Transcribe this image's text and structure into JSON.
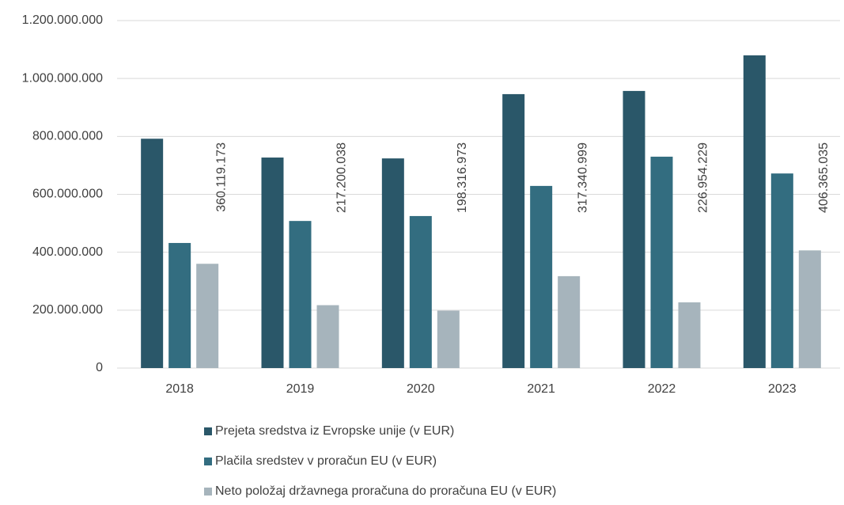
{
  "chart_data": {
    "type": "bar",
    "categories": [
      "2018",
      "2019",
      "2020",
      "2021",
      "2022",
      "2023"
    ],
    "series": [
      {
        "name": "Prejeta sredstva iz Evropske unije (v EUR)",
        "color": "#2a5769",
        "values": [
          792000000,
          727000000,
          724000000,
          946000000,
          957000000,
          1080000000
        ]
      },
      {
        "name": "Plačila sredstev v proračun EU (v EUR)",
        "color": "#336d80",
        "values": [
          432000000,
          508000000,
          525000000,
          629000000,
          730000000,
          672000000
        ]
      },
      {
        "name": "Neto položaj državnega proračuna do proračuna EU (v EUR)",
        "color": "#a6b4bc",
        "values": [
          360119173,
          217200038,
          198316973,
          317340999,
          226954229,
          406365035
        ],
        "value_labels": [
          "360.119.173",
          "217.200.038",
          "198.316.973",
          "317.340.999",
          "226.954.229",
          "406.365.035"
        ]
      }
    ],
    "ylim": [
      0,
      1200000000
    ],
    "yticks": [
      0,
      {
        "value": 200000000,
        "label": "200.000.000"
      },
      {
        "value": 400000000,
        "label": "400.000.000"
      },
      {
        "value": 600000000,
        "label": "600.000.000"
      },
      {
        "value": 800000000,
        "label": "800.000.000"
      },
      {
        "value": 1000000000,
        "label": "1.000.000.000"
      },
      {
        "value": 1200000000,
        "label": "1.200.000.000"
      }
    ],
    "grid": true
  }
}
